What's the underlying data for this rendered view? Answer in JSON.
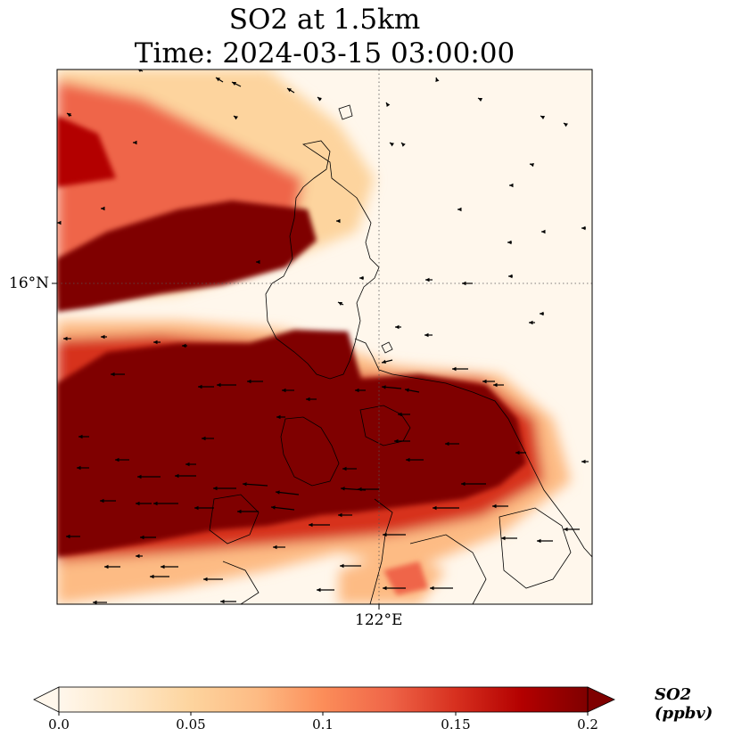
{
  "title": {
    "line1": "SO2 at 1.5km",
    "line2": "Time: 2024-03-15 03:00:00"
  },
  "axes": {
    "lat_label": "16°N",
    "lon_label": "122°E"
  },
  "colorbar": {
    "label": "SO2 (ppbv)",
    "ticks": [
      "0.0",
      "0.05",
      "0.1",
      "0.15",
      "0.2"
    ],
    "tick_values": [
      0.0,
      0.05,
      0.1,
      0.15,
      0.2
    ],
    "min": 0.0,
    "max": 0.2,
    "extend": "both",
    "colormap": "OrRd",
    "colors": [
      "#fff7ec",
      "#fee8c8",
      "#fdd49e",
      "#fdbb84",
      "#fc8d59",
      "#ef6548",
      "#d7301f",
      "#b30000",
      "#7f0000"
    ]
  },
  "map": {
    "background": "#fff7ec",
    "gridlines": "dotted",
    "coastline_color": "#000000",
    "wind_vectors": "black arrows, mostly pointing west",
    "plume_color": "#7f0000"
  }
}
